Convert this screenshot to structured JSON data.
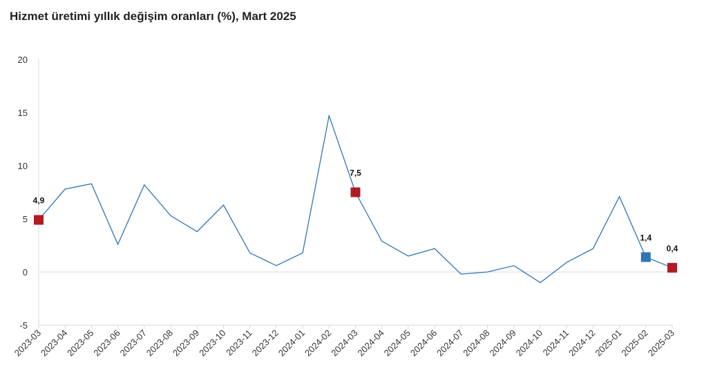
{
  "chart_data": {
    "type": "line",
    "title": "Hizmet üretimi yıllık değişim oranları (%), Mart 2025",
    "xlabel": "",
    "ylabel": "",
    "ylim": [
      -5,
      20
    ],
    "yticks": [
      "20",
      "15",
      "10",
      "5",
      "0",
      "-5"
    ],
    "ytick_values": [
      20,
      15,
      10,
      5,
      0,
      -5
    ],
    "categories": [
      "2023-03",
      "2023-04",
      "2023-05",
      "2023-06",
      "2023-07",
      "2023-08",
      "2023-09",
      "2023-10",
      "2023-11",
      "2023-12",
      "2024-01",
      "2024-02",
      "2024-03",
      "2024-04",
      "2024-05",
      "2024-06",
      "2024-07",
      "2024-08",
      "2024-09",
      "2024-10",
      "2024-11",
      "2024-12",
      "2025-01",
      "2025-02",
      "2025-03"
    ],
    "series": [
      {
        "color": "#2e75b6",
        "values": [
          4.9,
          7.8,
          8.3,
          2.6,
          8.2,
          5.3,
          3.8,
          6.3,
          1.8,
          0.6,
          1.8,
          14.7,
          7.5,
          2.9,
          1.5,
          2.2,
          -0.2,
          0.0,
          0.6,
          -1.0,
          0.9,
          2.2,
          7.1,
          1.4,
          0.4
        ]
      }
    ],
    "markers": [
      {
        "index": 0,
        "label": "4,9",
        "color": "#b01c24"
      },
      {
        "index": 12,
        "label": "7,5",
        "color": "#b01c24"
      },
      {
        "index": 23,
        "label": "1,4",
        "color": "#2e75b6"
      },
      {
        "index": 24,
        "label": "0,4",
        "color": "#b01c24"
      }
    ],
    "grid": false,
    "legend": "none"
  }
}
